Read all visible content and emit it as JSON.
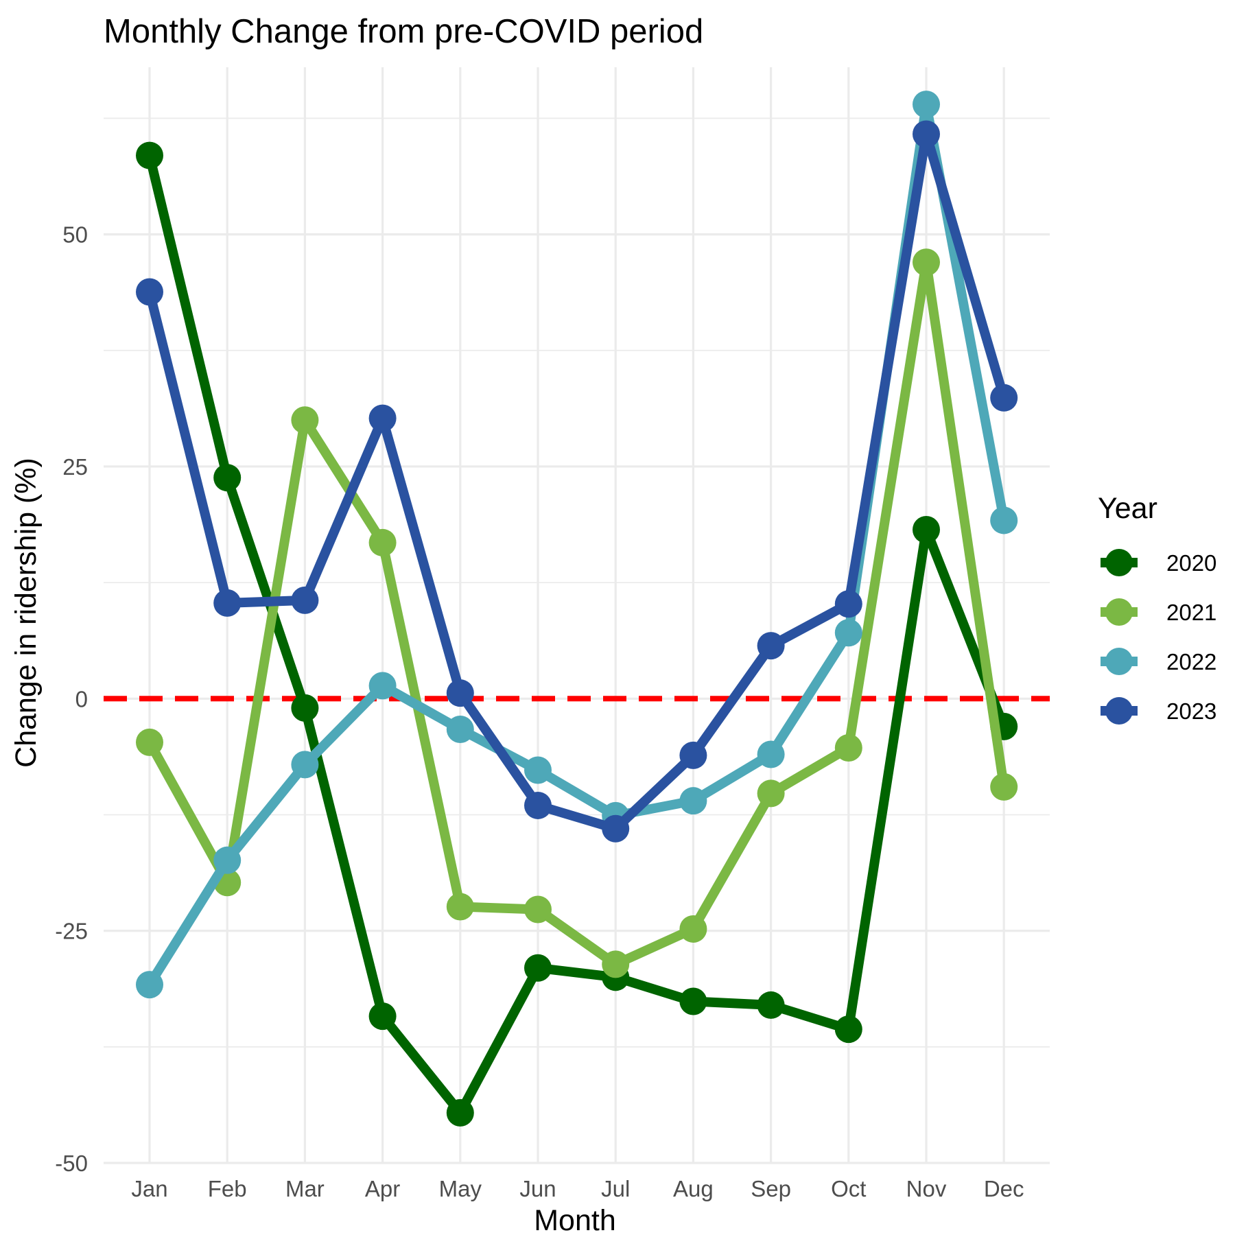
{
  "chart_data": {
    "type": "line",
    "title": "Monthly Change from pre-COVID period",
    "xlabel": "Month",
    "ylabel": "Change in ridership (%)",
    "categories": [
      "Jan",
      "Feb",
      "Mar",
      "Apr",
      "May",
      "Jun",
      "Jul",
      "Aug",
      "Sep",
      "Oct",
      "Nov",
      "Dec"
    ],
    "ylim": [
      -50,
      68
    ],
    "y_ticks": [
      -50,
      -25,
      0,
      25,
      50
    ],
    "y_tick_labels": [
      "-50",
      "-25",
      "0",
      "25",
      "50"
    ],
    "grid": true,
    "legend": {
      "title": "Year",
      "position": "right"
    },
    "reference_line": {
      "y": 0,
      "color": "#ff0000",
      "style": "dashed"
    },
    "series": [
      {
        "name": "2020",
        "color": "#006400",
        "values": [
          58.5,
          23.8,
          -1.0,
          -34.2,
          -44.6,
          -29.0,
          -30.0,
          -32.6,
          -33.0,
          -35.6,
          18.2,
          -3.0
        ]
      },
      {
        "name": "2021",
        "color": "#7bb844",
        "values": [
          -4.7,
          -19.8,
          30.0,
          16.8,
          -22.4,
          -22.7,
          -28.6,
          -24.8,
          -10.2,
          -5.3,
          47.0,
          -9.5
        ]
      },
      {
        "name": "2022",
        "color": "#4ea8b8",
        "values": [
          -30.8,
          -17.4,
          -7.1,
          1.4,
          -3.3,
          -7.7,
          -12.6,
          -11.0,
          -6.0,
          7.1,
          64.0,
          19.2
        ]
      },
      {
        "name": "2023",
        "color": "#2a52a0",
        "values": [
          43.8,
          10.3,
          10.6,
          30.2,
          0.6,
          -11.5,
          -14.0,
          -6.1,
          5.7,
          10.2,
          60.8,
          32.4
        ]
      }
    ]
  }
}
